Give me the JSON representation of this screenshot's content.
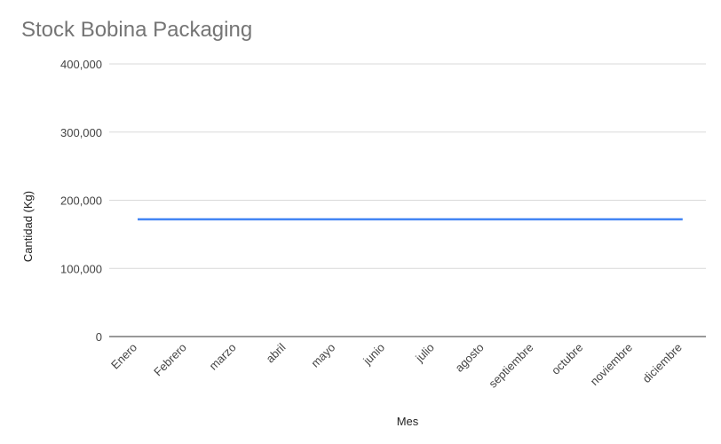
{
  "chart_data": {
    "type": "line",
    "title": "Stock Bobina Packaging",
    "xlabel": "Mes",
    "ylabel": "Cantidad (Kg)",
    "categories": [
      "Enero",
      "Febrero",
      "marzo",
      "abril",
      "mayo",
      "junio",
      "julio",
      "agosto",
      "septiembre",
      "octubre",
      "noviembre",
      "diciembre"
    ],
    "series": [
      {
        "values": [
          172000,
          172000,
          172000,
          172000,
          172000,
          172000,
          172000,
          172000,
          172000,
          172000,
          172000,
          172000
        ],
        "color": "#4285f4"
      }
    ],
    "ylim": [
      0,
      400000
    ],
    "yticks": [
      0,
      100000,
      200000,
      300000,
      400000
    ],
    "ytick_labels": [
      "0",
      "100,000",
      "200,000",
      "300,000",
      "400,000"
    ],
    "grid": true,
    "legend": "none"
  }
}
